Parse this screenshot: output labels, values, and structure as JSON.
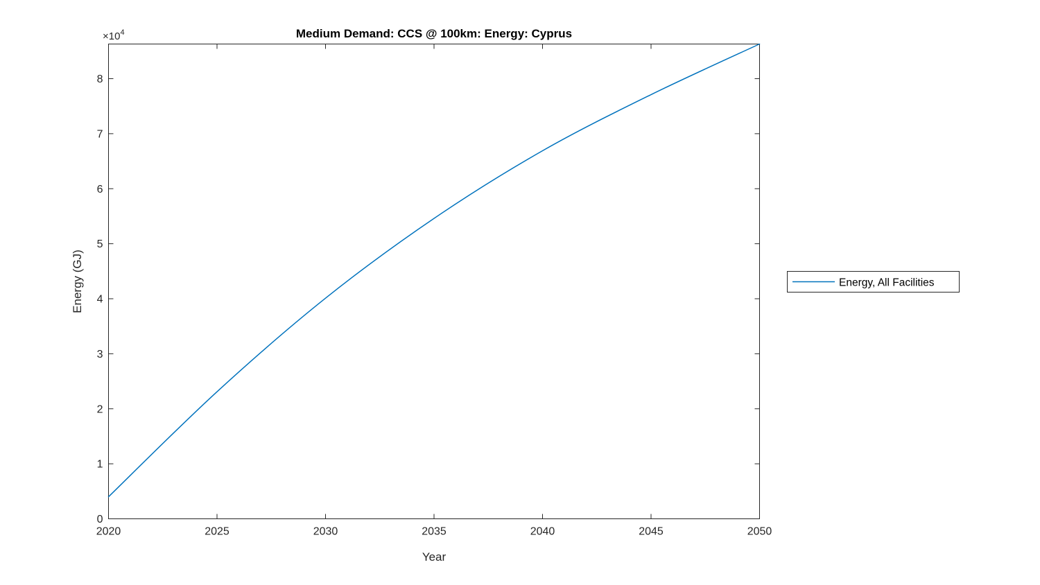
{
  "chart_data": {
    "type": "line",
    "title": "Medium Demand: CCS @ 100km: Energy: Cyprus",
    "xlabel": "Year",
    "ylabel": "Energy (GJ)",
    "y_axis_multiplier": {
      "base": "×10",
      "power": "4",
      "display": "×10⁴"
    },
    "xlim": [
      2020,
      2050
    ],
    "ylim": [
      0,
      86300
    ],
    "xticks": {
      "values": [
        2020,
        2025,
        2030,
        2035,
        2040,
        2045,
        2050
      ],
      "labels": [
        "2020",
        "2025",
        "2030",
        "2035",
        "2040",
        "2045",
        "2050"
      ]
    },
    "yticks": {
      "values": [
        0,
        10000,
        20000,
        30000,
        40000,
        50000,
        60000,
        70000,
        80000
      ],
      "labels": [
        "0",
        "1",
        "2",
        "3",
        "4",
        "5",
        "6",
        "7",
        "8"
      ]
    },
    "grid": false,
    "legend": {
      "position": "right-outside"
    },
    "series": [
      {
        "name": "Energy, All Facilities",
        "color": "#0072BD",
        "x": [
          2020,
          2025,
          2030,
          2035,
          2040,
          2045,
          2050
        ],
        "y": [
          4000,
          23100,
          40100,
          54600,
          66900,
          77100,
          86300
        ]
      }
    ],
    "axis_color": "#262626"
  }
}
